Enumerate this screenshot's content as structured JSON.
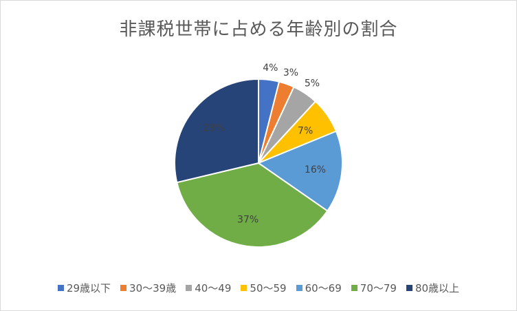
{
  "chart_data": {
    "type": "pie",
    "title": "非課税世帯に占める年齢別の割合",
    "categories": [
      "29歳以下",
      "30～39歳",
      "40～49",
      "50～59",
      "60～69",
      "70～79",
      "80歳以上"
    ],
    "values": [
      4,
      3,
      5,
      7,
      16,
      37,
      29
    ],
    "labels": [
      "4%",
      "3%",
      "5%",
      "7%",
      "16%",
      "37%",
      "29%"
    ],
    "colors": [
      "#4472c4",
      "#ed7d31",
      "#a5a5a5",
      "#ffc000",
      "#5b9bd5",
      "#70ad47",
      "#264478"
    ],
    "legend_position": "bottom"
  }
}
